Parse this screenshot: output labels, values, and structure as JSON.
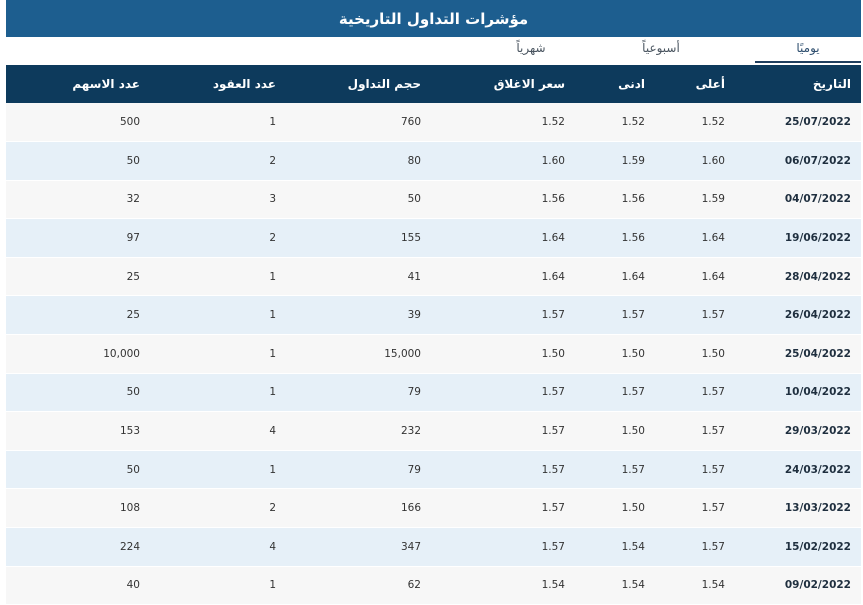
{
  "title": "مؤشرات التداول التاريخية",
  "tabs": [
    {
      "label": "يوميًا",
      "active": true
    },
    {
      "label": "أسبوعياً",
      "active": false
    },
    {
      "label": "شهرياً",
      "active": false
    }
  ],
  "table": {
    "headers": {
      "date": "التاريخ",
      "high": "أعلى",
      "low": "ادنى",
      "close": "سعر الاغلاق",
      "volume": "حجم التداول",
      "contracts": "عدد العقود",
      "shares": "عدد الاسهم"
    },
    "rows": [
      {
        "date": "25/07/2022",
        "high": "1.52",
        "low": "1.52",
        "close": "1.52",
        "volume": "760",
        "contracts": "1",
        "shares": "500"
      },
      {
        "date": "06/07/2022",
        "high": "1.60",
        "low": "1.59",
        "close": "1.60",
        "volume": "80",
        "contracts": "2",
        "shares": "50"
      },
      {
        "date": "04/07/2022",
        "high": "1.59",
        "low": "1.56",
        "close": "1.56",
        "volume": "50",
        "contracts": "3",
        "shares": "32"
      },
      {
        "date": "19/06/2022",
        "high": "1.64",
        "low": "1.56",
        "close": "1.64",
        "volume": "155",
        "contracts": "2",
        "shares": "97"
      },
      {
        "date": "28/04/2022",
        "high": "1.64",
        "low": "1.64",
        "close": "1.64",
        "volume": "41",
        "contracts": "1",
        "shares": "25"
      },
      {
        "date": "26/04/2022",
        "high": "1.57",
        "low": "1.57",
        "close": "1.57",
        "volume": "39",
        "contracts": "1",
        "shares": "25"
      },
      {
        "date": "25/04/2022",
        "high": "1.50",
        "low": "1.50",
        "close": "1.50",
        "volume": "15,000",
        "contracts": "1",
        "shares": "10,000"
      },
      {
        "date": "10/04/2022",
        "high": "1.57",
        "low": "1.57",
        "close": "1.57",
        "volume": "79",
        "contracts": "1",
        "shares": "50"
      },
      {
        "date": "29/03/2022",
        "high": "1.57",
        "low": "1.50",
        "close": "1.57",
        "volume": "232",
        "contracts": "4",
        "shares": "153"
      },
      {
        "date": "24/03/2022",
        "high": "1.57",
        "low": "1.57",
        "close": "1.57",
        "volume": "79",
        "contracts": "1",
        "shares": "50"
      },
      {
        "date": "13/03/2022",
        "high": "1.57",
        "low": "1.50",
        "close": "1.57",
        "volume": "166",
        "contracts": "2",
        "shares": "108"
      },
      {
        "date": "15/02/2022",
        "high": "1.57",
        "low": "1.54",
        "close": "1.57",
        "volume": "347",
        "contracts": "4",
        "shares": "224"
      },
      {
        "date": "09/02/2022",
        "high": "1.54",
        "low": "1.54",
        "close": "1.54",
        "volume": "62",
        "contracts": "1",
        "shares": "40"
      }
    ]
  }
}
